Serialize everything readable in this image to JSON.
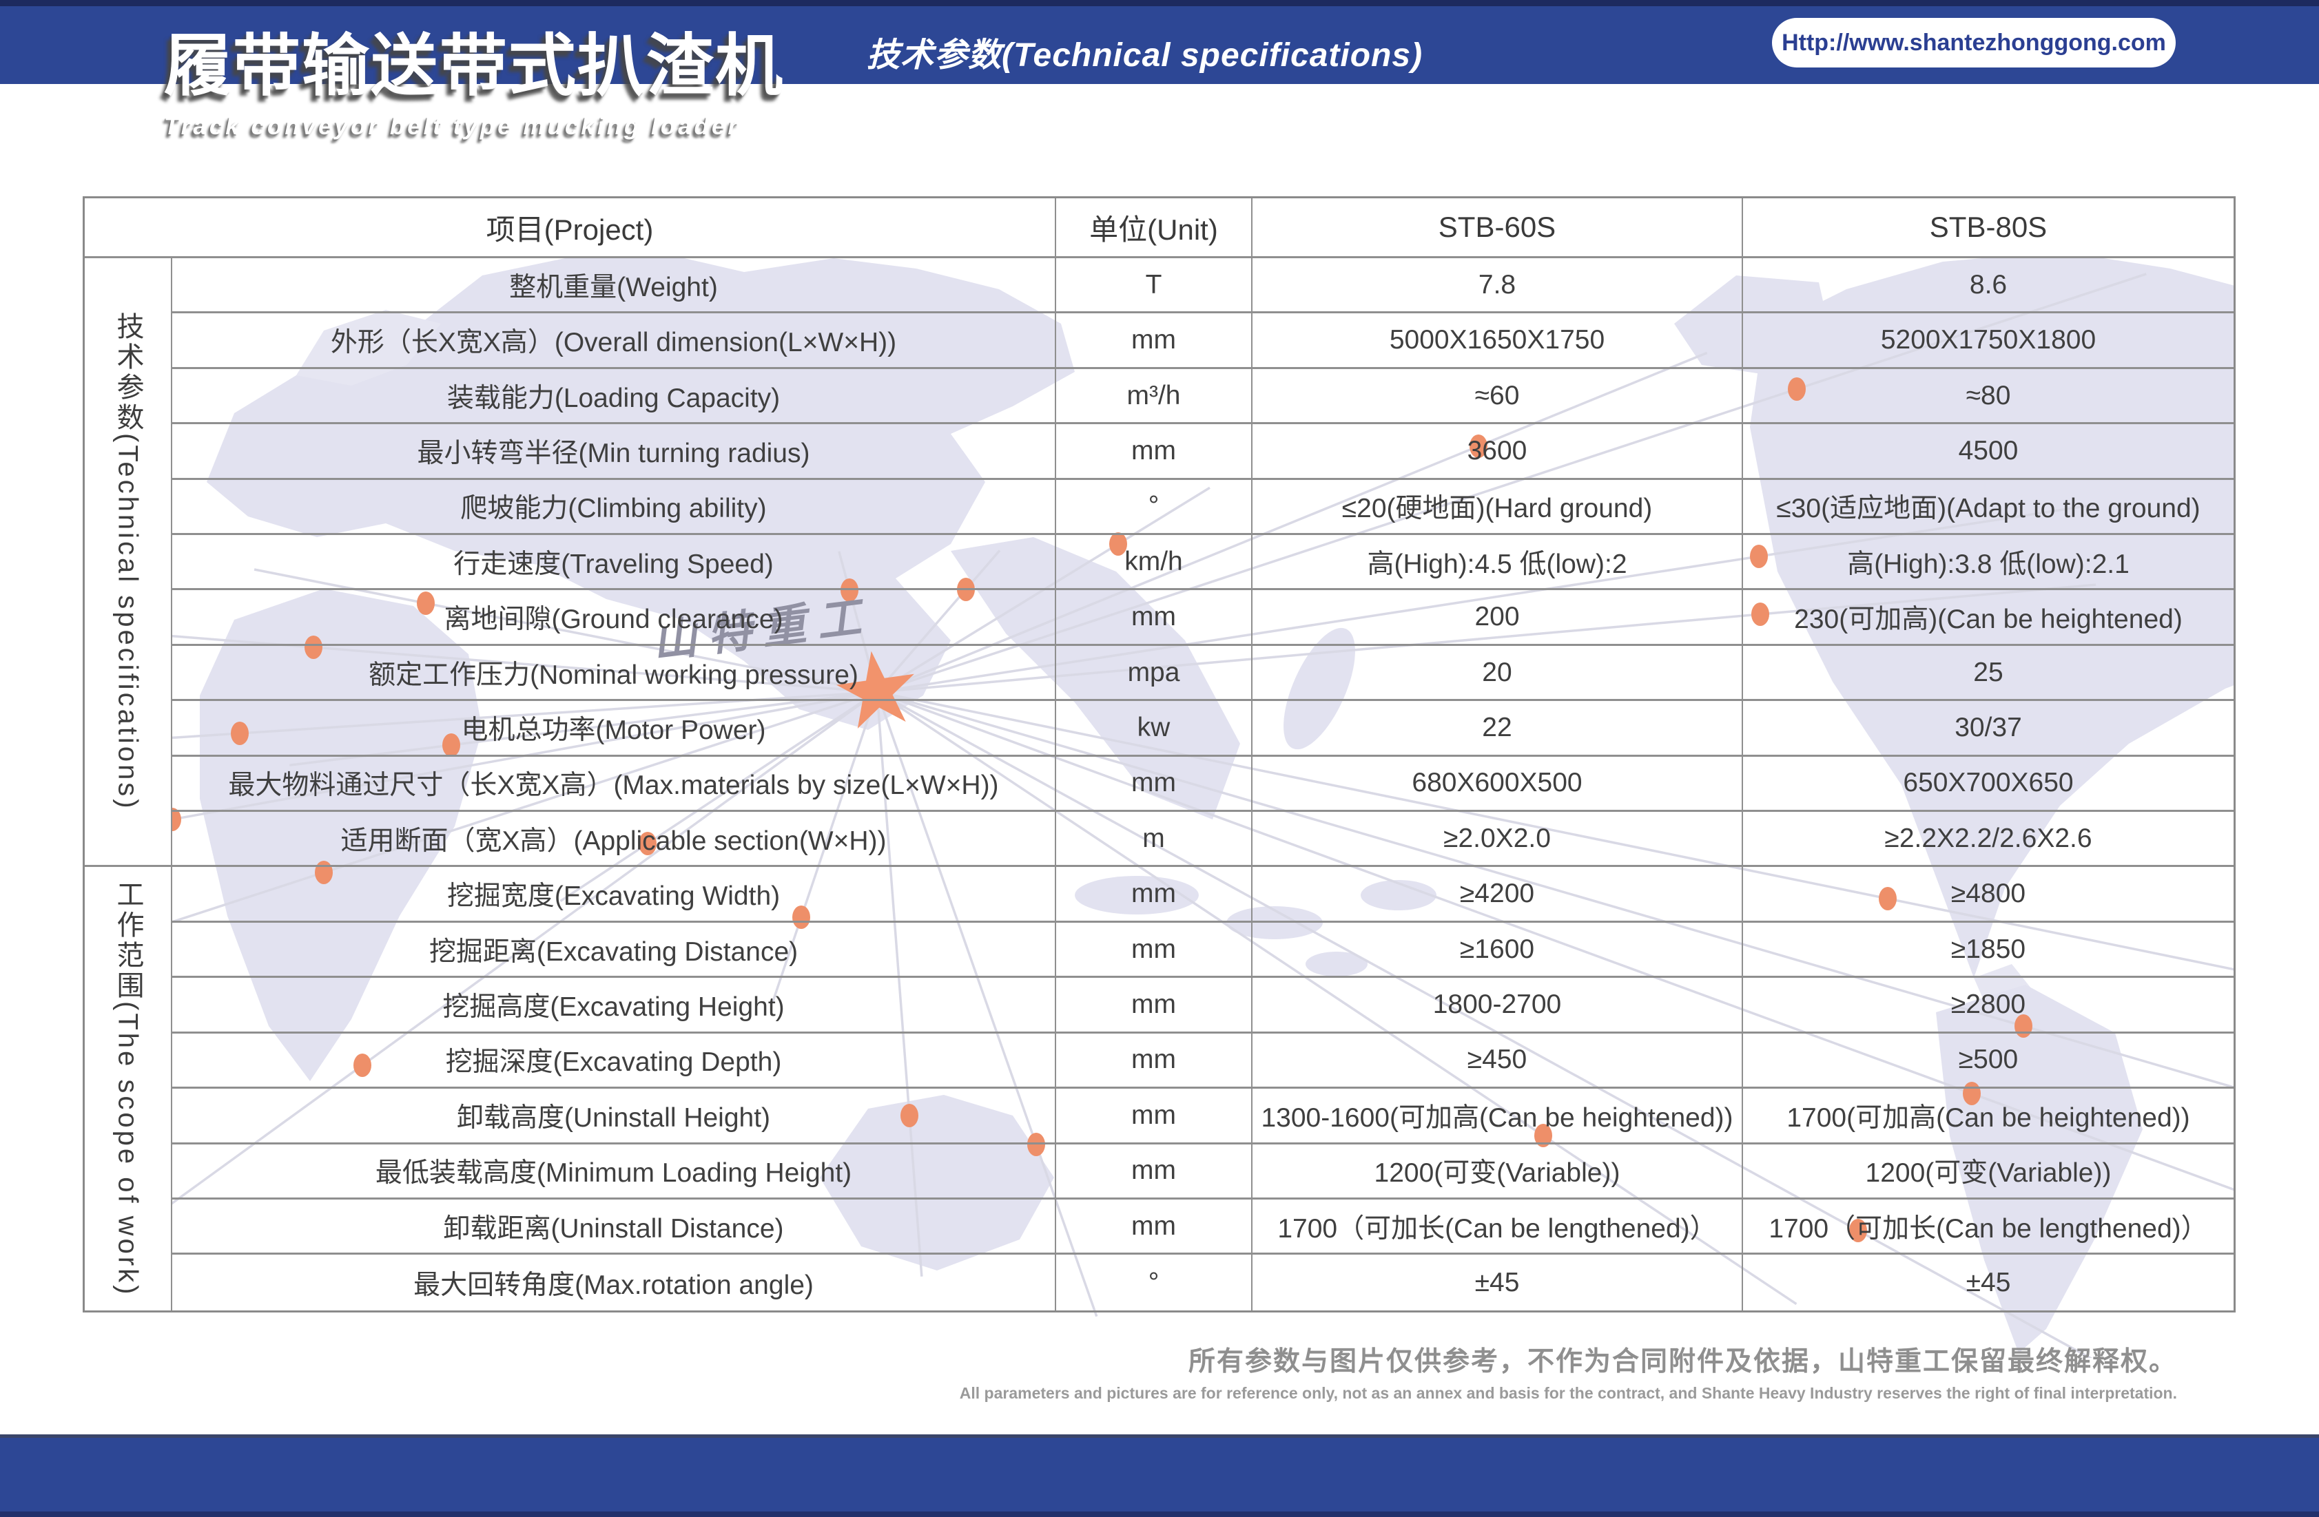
{
  "header": {
    "title_cn": "履带输送带式扒渣机",
    "title_en": "Track conveyor belt type mucking loader",
    "band_title": "技术参数(Technical specifications)",
    "url": "Http://www.shantezhonggong.com"
  },
  "watermark": {
    "brand": "山特重工"
  },
  "table": {
    "columns": [
      "项目(Project)",
      "单位(Unit)",
      "STB-60S",
      "STB-80S"
    ],
    "groups": [
      {
        "label": "技术参数(Technical specifications)",
        "rows": [
          {
            "project": "整机重量(Weight)",
            "unit": "T",
            "stb60s": "7.8",
            "stb80s": "8.6"
          },
          {
            "project": "外形（长X宽X高）(Overall dimension(L×W×H))",
            "unit": "mm",
            "stb60s": "5000X1650X1750",
            "stb80s": "5200X1750X1800"
          },
          {
            "project": "装载能力(Loading Capacity)",
            "unit": "m³/h",
            "stb60s": "≈60",
            "stb80s": "≈80"
          },
          {
            "project": "最小转弯半径(Min turning radius)",
            "unit": "mm",
            "stb60s": "3600",
            "stb80s": "4500"
          },
          {
            "project": "爬坡能力(Climbing ability)",
            "unit": "°",
            "stb60s": "≤20(硬地面)(Hard ground)",
            "stb80s": "≤30(适应地面)(Adapt to the ground)"
          },
          {
            "project": "行走速度(Traveling Speed)",
            "unit": "km/h",
            "stb60s": "高(High):4.5 低(low):2",
            "stb80s": "高(High):3.8 低(low):2.1"
          },
          {
            "project": "离地间隙(Ground clearance)",
            "unit": "mm",
            "stb60s": "200",
            "stb80s": "230(可加高)(Can be heightened)"
          },
          {
            "project": "额定工作压力(Nominal working pressure)",
            "unit": "mpa",
            "stb60s": "20",
            "stb80s": "25"
          },
          {
            "project": "电机总功率(Motor Power)",
            "unit": "kw",
            "stb60s": "22",
            "stb80s": "30/37"
          },
          {
            "project": "最大物料通过尺寸（长X宽X高）(Max.materials by size(L×W×H))",
            "unit": "mm",
            "stb60s": "680X600X500",
            "stb80s": "650X700X650"
          },
          {
            "project": "适用断面（宽X高）(Applicable section(W×H))",
            "unit": "m",
            "stb60s": "≥2.0X2.0",
            "stb80s": "≥2.2X2.2/2.6X2.6"
          }
        ]
      },
      {
        "label": "工作范围(The scope of work)",
        "rows": [
          {
            "project": "挖掘宽度(Excavating Width)",
            "unit": "mm",
            "stb60s": "≥4200",
            "stb80s": "≥4800"
          },
          {
            "project": "挖掘距离(Excavating Distance)",
            "unit": "mm",
            "stb60s": "≥1600",
            "stb80s": "≥1850"
          },
          {
            "project": "挖掘高度(Excavating Height)",
            "unit": "mm",
            "stb60s": "1800-2700",
            "stb80s": "≥2800"
          },
          {
            "project": "挖掘深度(Excavating Depth)",
            "unit": "mm",
            "stb60s": "≥450",
            "stb80s": "≥500"
          },
          {
            "project": "卸载高度(Uninstall Height)",
            "unit": "mm",
            "stb60s": "1300-1600(可加高(Can be heightened))",
            "stb80s": "1700(可加高(Can be heightened))"
          },
          {
            "project": "最低装载高度(Minimum Loading Height)",
            "unit": "mm",
            "stb60s": "1200(可变(Variable))",
            "stb80s": "1200(可变(Variable))"
          },
          {
            "project": "卸载距离(Uninstall Distance)",
            "unit": "mm",
            "stb60s": "1700（可加长(Can be lengthened)）",
            "stb80s": "1700（可加长(Can be lengthened)）"
          },
          {
            "project": "最大回转角度(Max.rotation angle)",
            "unit": "°",
            "stb60s": "±45",
            "stb80s": "±45"
          }
        ]
      }
    ]
  },
  "footer": {
    "disclaimer_cn": "所有参数与图片仅供参考，不作为合同附件及依据，山特重工保留最终解释权。",
    "disclaimer_en": "All parameters and pictures are for reference only, not as an annex and basis for the contract, and Shante Heavy Industry reserves the right of final interpretation."
  },
  "colors": {
    "brand_blue": "#2d4795",
    "navy": "#1d2a5f",
    "accent_orange": "#ee8f69",
    "grid_gray": "#8a8a8a"
  }
}
